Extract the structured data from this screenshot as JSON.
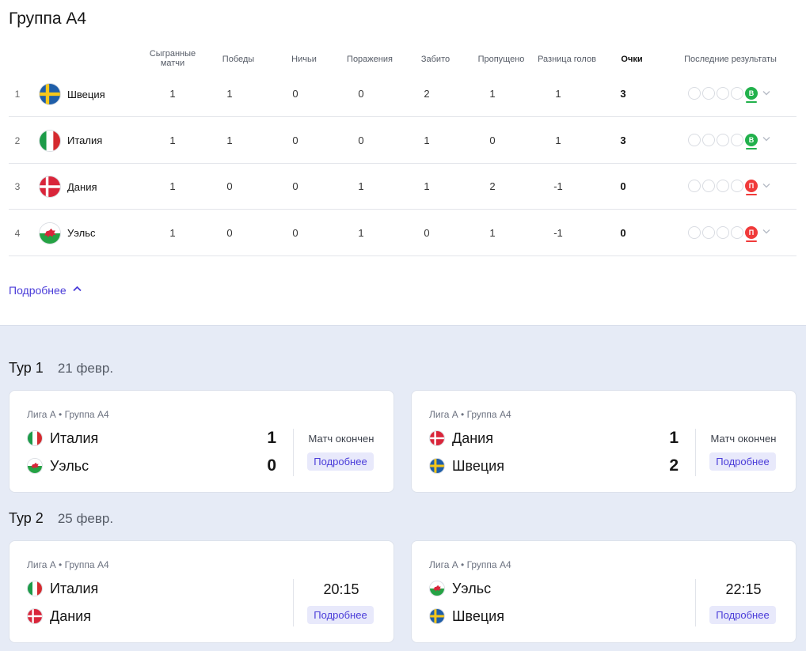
{
  "group_title": "Группа А4",
  "table": {
    "headers": {
      "played": "Сыгранные матчи",
      "wins": "Победы",
      "draws": "Ничьи",
      "losses": "Поражения",
      "scored": "Забито",
      "conceded": "Пропущено",
      "diff": "Разница голов",
      "points": "Очки",
      "form": "Последние результаты"
    },
    "rows": [
      {
        "rank": "1",
        "team": "Швеция",
        "flag": "sweden-flag-icon",
        "played": "1",
        "wins": "1",
        "draws": "0",
        "losses": "0",
        "scored": "2",
        "conceded": "1",
        "diff": "1",
        "points": "3",
        "last_result": "В",
        "last_result_type": "win"
      },
      {
        "rank": "2",
        "team": "Италия",
        "flag": "italy-flag-icon",
        "played": "1",
        "wins": "1",
        "draws": "0",
        "losses": "0",
        "scored": "1",
        "conceded": "0",
        "diff": "1",
        "points": "3",
        "last_result": "В",
        "last_result_type": "win"
      },
      {
        "rank": "3",
        "team": "Дания",
        "flag": "denmark-flag-icon",
        "played": "1",
        "wins": "0",
        "draws": "0",
        "losses": "1",
        "scored": "1",
        "conceded": "2",
        "diff": "-1",
        "points": "0",
        "last_result": "П",
        "last_result_type": "loss"
      },
      {
        "rank": "4",
        "team": "Уэльс",
        "flag": "wales-flag-icon",
        "played": "1",
        "wins": "0",
        "draws": "0",
        "losses": "1",
        "scored": "0",
        "conceded": "1",
        "diff": "-1",
        "points": "0",
        "last_result": "П",
        "last_result_type": "loss"
      }
    ]
  },
  "more_link": "Подробнее",
  "colors": {
    "accent": "#4a3cd9",
    "win": "#22b14c",
    "loss": "#f03a3a",
    "section_bg": "#e6ebf6"
  },
  "rounds": [
    {
      "title": "Тур 1",
      "date": "21 февр.",
      "matches": [
        {
          "meta": "Лига А • Группа А4",
          "home": "Италия",
          "home_flag": "italy-flag-icon",
          "away": "Уэльс",
          "away_flag": "wales-flag-icon",
          "home_score": "1",
          "away_score": "0",
          "status": "Матч окончен",
          "details": "Подробнее"
        },
        {
          "meta": "Лига А • Группа А4",
          "home": "Дания",
          "home_flag": "denmark-flag-icon",
          "away": "Швеция",
          "away_flag": "sweden-flag-icon",
          "home_score": "1",
          "away_score": "2",
          "status": "Матч окончен",
          "details": "Подробнее"
        }
      ]
    },
    {
      "title": "Тур 2",
      "date": "25 февр.",
      "matches": [
        {
          "meta": "Лига А • Группа А4",
          "home": "Италия",
          "home_flag": "italy-flag-icon",
          "away": "Дания",
          "away_flag": "denmark-flag-icon",
          "time": "20:15",
          "details": "Подробнее"
        },
        {
          "meta": "Лига А • Группа А4",
          "home": "Уэльс",
          "home_flag": "wales-flag-icon",
          "away": "Швеция",
          "away_flag": "sweden-flag-icon",
          "time": "22:15",
          "details": "Подробнее"
        }
      ]
    }
  ]
}
